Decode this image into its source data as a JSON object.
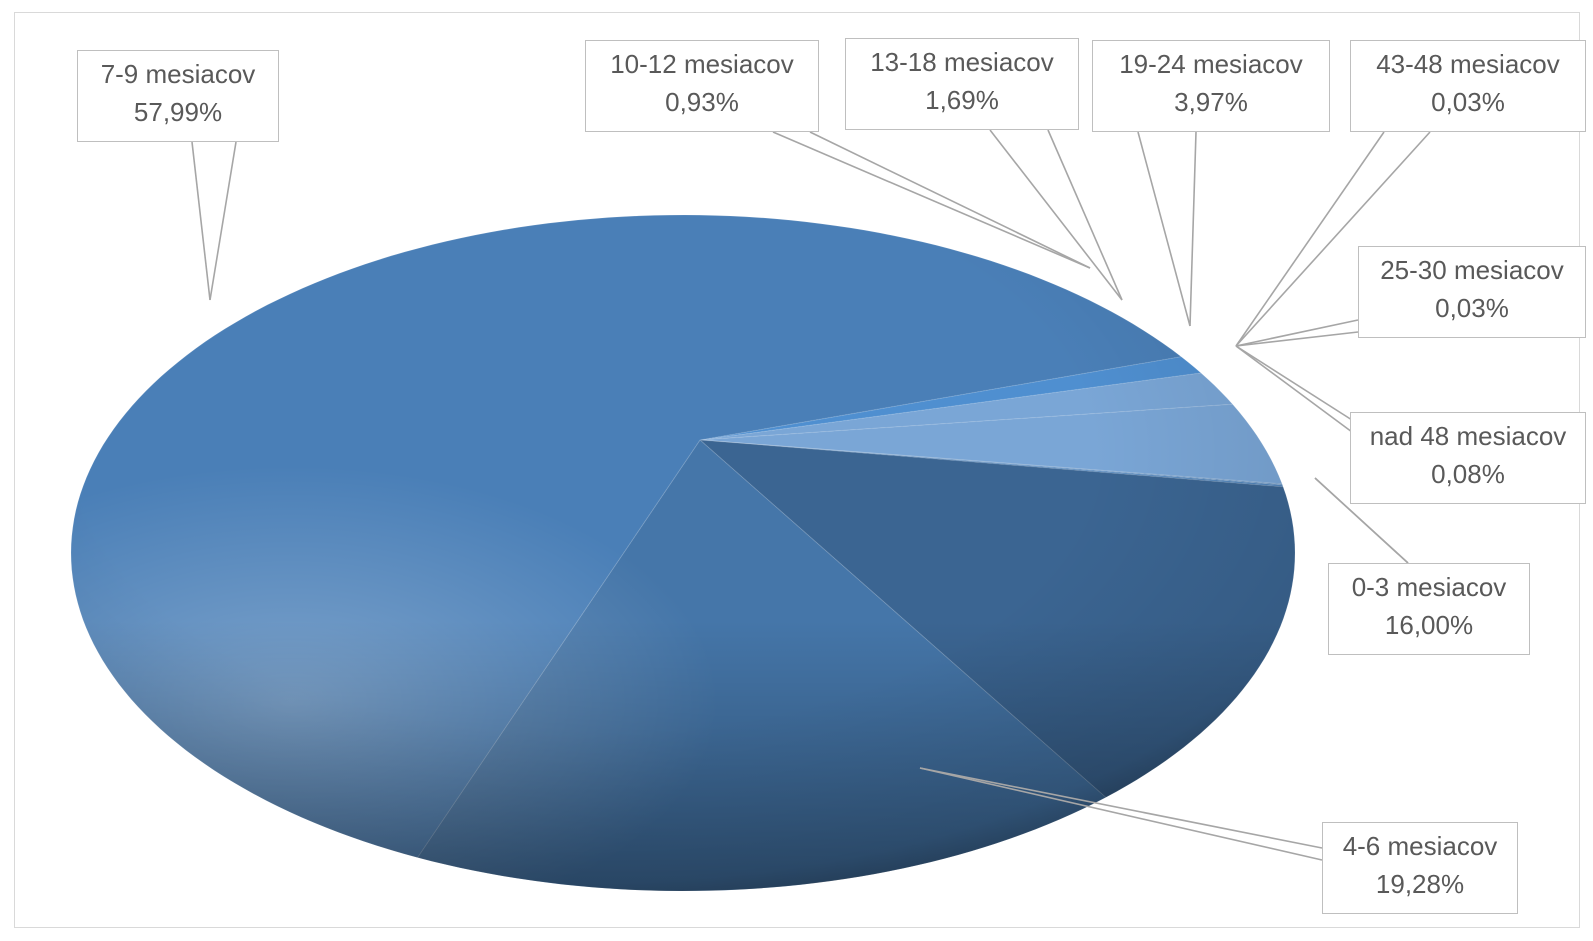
{
  "chart_data": {
    "type": "pie",
    "title": "",
    "slices": [
      {
        "label": "7-9 mesiacov",
        "value_text": "57,99%",
        "value": 57.99
      },
      {
        "label": "10-12 mesiacov",
        "value_text": "0,93%",
        "value": 0.93
      },
      {
        "label": "13-18 mesiacov",
        "value_text": "1,69%",
        "value": 1.69
      },
      {
        "label": "19-24 mesiacov",
        "value_text": "3,97%",
        "value": 3.97
      },
      {
        "label": "43-48 mesiacov",
        "value_text": "0,03%",
        "value": 0.03
      },
      {
        "label": "25-30 mesiacov",
        "value_text": "0,03%",
        "value": 0.03
      },
      {
        "label": "nad 48 mesiacov",
        "value_text": "0,08%",
        "value": 0.08
      },
      {
        "label": "0-3 mesiacov",
        "value_text": "16,00%",
        "value": 16.0
      },
      {
        "label": "4-6 mesiacov",
        "value_text": "19,28%",
        "value": 19.28
      }
    ],
    "colors": {
      "7-9 mesiacov": "#4a7fb7",
      "10-12 mesiacov": "#4f8fd0",
      "13-18 mesiacov": "#7aa6d6",
      "19-24 mesiacov": "#7aa6d6",
      "0-3 mesiacov": "#3b6592",
      "4-6 mesiacov": "#4576a9"
    },
    "style": "3d-pie",
    "legend": "none"
  }
}
